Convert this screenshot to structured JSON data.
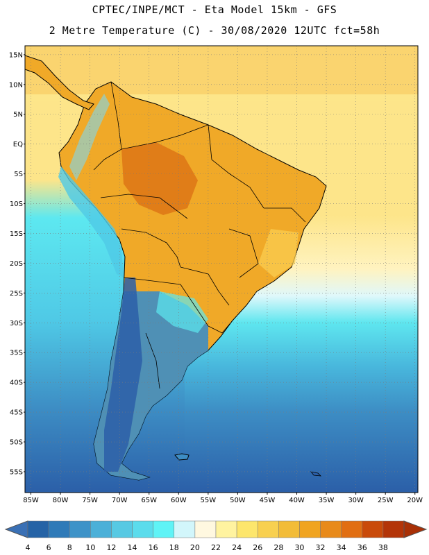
{
  "header": {
    "line1": "CPTEC/INPE/MCT -  Eta Model 15km - GFS",
    "line2": "2 Metre Temperature (C) - 30/08/2020 12UTC fct=58h"
  },
  "map": {
    "lat_labels": [
      "15N",
      "10N",
      "5N",
      "EQ",
      "5S",
      "10S",
      "15S",
      "20S",
      "25S",
      "30S",
      "35S",
      "40S",
      "45S",
      "50S",
      "55S"
    ],
    "lon_labels": [
      "85W",
      "80W",
      "75W",
      "70W",
      "65W",
      "60W",
      "55W",
      "50W",
      "45W",
      "40W",
      "35W",
      "30W",
      "25W",
      "20W"
    ],
    "lat_range": [
      16.5,
      -58.5
    ],
    "lon_range": [
      -86,
      -19.5
    ],
    "grid": true,
    "colors": {
      "water_cold": "#2b5fa8",
      "ocean_mid": "#3d8dc4",
      "ocean_cyan": "#5de8f0",
      "atl_north": "#fddc5c",
      "land_warm": "#f0a928",
      "land_hot": "#dd7615",
      "coast": "#000000"
    }
  },
  "colorbar": {
    "labels": [
      "4",
      "6",
      "8",
      "10",
      "12",
      "14",
      "16",
      "18",
      "20",
      "22",
      "24",
      "26",
      "28",
      "30",
      "32",
      "34",
      "36",
      "38"
    ],
    "colors": [
      "#2563a6",
      "#2f7ab8",
      "#3e93c8",
      "#4bb0d8",
      "#57c9e3",
      "#5bdcec",
      "#5ff3f6",
      "#d2f6fb",
      "#fff8e0",
      "#fff3a0",
      "#fde66c",
      "#f8d050",
      "#f2bc38",
      "#f0a420",
      "#e88a1a",
      "#e16e12",
      "#c94a0a",
      "#b33408"
    ],
    "low_color": "#3a70b5",
    "high_color": "#a83006"
  }
}
